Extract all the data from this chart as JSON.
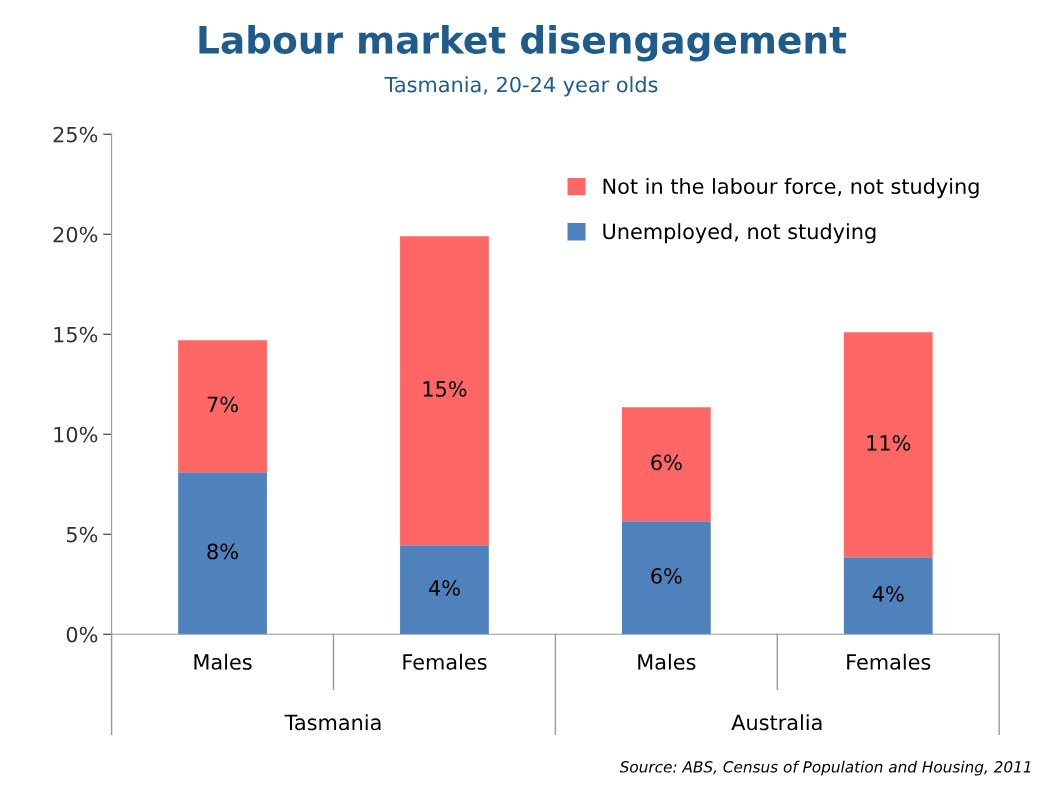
{
  "chart_data": {
    "type": "bar",
    "title": "Labour market disengagement",
    "subtitle": "Tasmania, 20-24 year olds",
    "categories": [
      "Males",
      "Females",
      "Males",
      "Females"
    ],
    "series": [
      {
        "name": "Unemployed, not studying",
        "color": "#4f81bd",
        "values": [
          8.1,
          4.45,
          5.65,
          3.85
        ],
        "value_labels": [
          "8%",
          "4%",
          "6%",
          "4%"
        ]
      },
      {
        "name": "Not in the labour force, not studying",
        "color": "#ff6666",
        "values": [
          6.6,
          15.45,
          5.7,
          11.25
        ],
        "value_labels": [
          "7%",
          "15%",
          "6%",
          "11%"
        ]
      }
    ],
    "stacked": true,
    "ylim": [
      0,
      25
    ],
    "yticks": [
      {
        "value": 0,
        "label": "0%"
      },
      {
        "value": 5,
        "label": "5%"
      },
      {
        "value": 10,
        "label": "10%"
      },
      {
        "value": 15,
        "label": "15%"
      },
      {
        "value": 20,
        "label": "20%"
      },
      {
        "value": 25,
        "label": "25%"
      }
    ],
    "grid": false,
    "legend": "top right",
    "annotations": [
      "Tasmania",
      "Australia",
      "Source: ABS, Census of Population and Housing, 2011"
    ]
  }
}
